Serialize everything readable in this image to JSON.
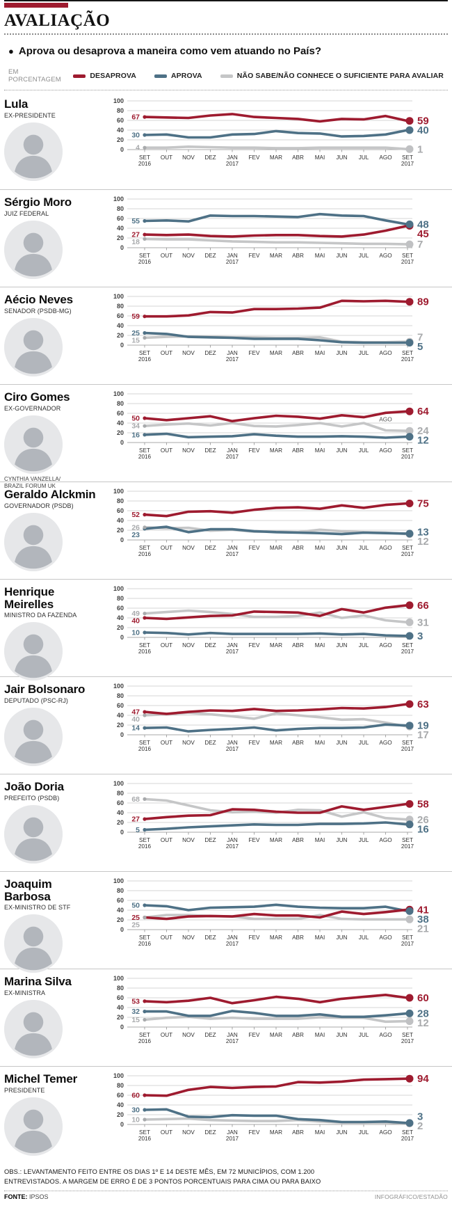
{
  "header": {
    "title": "AVALIAÇÃO",
    "kicker_bar_color": "#9E1B2F"
  },
  "question": {
    "bullet": "●",
    "text": "Aprova ou desaprova a maneira como vem atuando no País?"
  },
  "legend": {
    "unit_label": "EM PORCENTAGEM",
    "items": [
      {
        "key": "desaprova",
        "label": "DESAPROVA",
        "color": "#9E1B2F"
      },
      {
        "key": "aprova",
        "label": "APROVA",
        "color": "#4E7186"
      },
      {
        "key": "nao_sabe",
        "label": "NÃO SABE/NÃO CONHECE O SUFICIENTE PARA AVALIAR",
        "color": "#C5C6C7"
      }
    ]
  },
  "axis": {
    "ylim": [
      0,
      100
    ],
    "y_ticks": [
      0,
      20,
      40,
      60,
      80,
      100
    ],
    "months": [
      {
        "label": "SET",
        "year": "2016"
      },
      {
        "label": "OUT"
      },
      {
        "label": "NOV"
      },
      {
        "label": "DEZ"
      },
      {
        "label": "JAN",
        "year": "2017"
      },
      {
        "label": "FEV"
      },
      {
        "label": "MAR"
      },
      {
        "label": "ABR"
      },
      {
        "label": "MAI"
      },
      {
        "label": "JUN"
      },
      {
        "label": "JUL"
      },
      {
        "label": "AGO"
      },
      {
        "label": "SET",
        "year": "2017"
      }
    ]
  },
  "chart_data": [
    {
      "type": "line",
      "title": "Lula",
      "subtitle": "EX-PRESIDENTE",
      "series": [
        {
          "key": "desaprova",
          "name": "DESAPROVA",
          "color": "#9E1B2F",
          "start_label": "67",
          "end_label": "59",
          "values": [
            67,
            66,
            65,
            70,
            73,
            67,
            65,
            63,
            58,
            63,
            62,
            69,
            59
          ]
        },
        {
          "key": "aprova",
          "name": "APROVA",
          "color": "#4E7186",
          "start_label": "30",
          "end_label": "40",
          "values": [
            30,
            31,
            25,
            25,
            31,
            32,
            38,
            34,
            33,
            27,
            28,
            31,
            40
          ]
        },
        {
          "key": "nao_sabe",
          "name": "NÃO SABE",
          "color": "#C5C6C7",
          "label_color": "#A8AAAC",
          "start_label": "4",
          "end_label": "1",
          "values": [
            4,
            4,
            6,
            5,
            4,
            4,
            3,
            3,
            4,
            4,
            4,
            4,
            1
          ]
        }
      ]
    },
    {
      "type": "line",
      "title": "Sérgio Moro",
      "subtitle": "JUIZ FEDERAL",
      "series": [
        {
          "key": "desaprova",
          "name": "DESAPROVA",
          "color": "#9E1B2F",
          "start_label": "27",
          "end_label": "45",
          "values": [
            27,
            26,
            27,
            24,
            23,
            25,
            26,
            26,
            24,
            23,
            27,
            35,
            45
          ]
        },
        {
          "key": "aprova",
          "name": "APROVA",
          "color": "#4E7186",
          "start_label": "55",
          "end_label": "48",
          "values": [
            55,
            56,
            54,
            66,
            65,
            65,
            64,
            63,
            69,
            66,
            65,
            56,
            48
          ]
        },
        {
          "key": "nao_sabe",
          "name": "NÃO SABE",
          "color": "#C5C6C7",
          "label_color": "#A8AAAC",
          "start_label": "18",
          "end_label": "7",
          "values": [
            18,
            17,
            17,
            15,
            13,
            12,
            11,
            11,
            10,
            9,
            8,
            8,
            7
          ]
        }
      ]
    },
    {
      "type": "line",
      "title": "Aécio Neves",
      "subtitle": "SENADOR (PSDB-MG)",
      "series": [
        {
          "key": "desaprova",
          "name": "DESAPROVA",
          "color": "#9E1B2F",
          "start_label": "59",
          "end_label": "89",
          "values": [
            59,
            59,
            61,
            68,
            67,
            74,
            74,
            75,
            77,
            91,
            90,
            91,
            89
          ]
        },
        {
          "key": "aprova",
          "name": "APROVA",
          "color": "#4E7186",
          "start_label": "25",
          "end_label": "5",
          "values": [
            25,
            23,
            17,
            16,
            15,
            13,
            13,
            13,
            10,
            6,
            5,
            5,
            5
          ]
        },
        {
          "key": "nao_sabe",
          "name": "NÃO SABE",
          "color": "#C5C6C7",
          "label_color": "#A8AAAC",
          "start_label": "15",
          "end_label": "7",
          "values": [
            15,
            17,
            18,
            17,
            16,
            16,
            15,
            15,
            16,
            7,
            6,
            6,
            7
          ]
        }
      ]
    },
    {
      "type": "line",
      "title": "Ciro Gomes",
      "subtitle": "EX-GOVERNADOR",
      "photo_credit": "CYNTHIA VANZELLA/ BRAZIL FORUM UK",
      "annotation": {
        "text": "AGO",
        "month_index": 11,
        "value": 61
      },
      "series": [
        {
          "key": "desaprova",
          "name": "DESAPROVA",
          "color": "#9E1B2F",
          "start_label": "50",
          "end_label": "64",
          "values": [
            50,
            46,
            50,
            54,
            44,
            50,
            55,
            53,
            49,
            56,
            52,
            61,
            64
          ]
        },
        {
          "key": "aprova",
          "name": "APROVA",
          "color": "#4E7186",
          "start_label": "16",
          "end_label": "12",
          "values": [
            16,
            18,
            11,
            12,
            13,
            17,
            14,
            12,
            12,
            13,
            12,
            10,
            12
          ]
        },
        {
          "key": "nao_sabe",
          "name": "NÃO SABE",
          "color": "#C5C6C7",
          "label_color": "#A8AAAC",
          "start_label": "34",
          "end_label": "24",
          "values": [
            34,
            37,
            39,
            35,
            40,
            34,
            33,
            36,
            40,
            33,
            40,
            25,
            24
          ]
        }
      ]
    },
    {
      "type": "line",
      "title": "Geraldo Alckmin",
      "subtitle": "GOVERNADOR (PSDB)",
      "series": [
        {
          "key": "desaprova",
          "name": "DESAPROVA",
          "color": "#9E1B2F",
          "start_label": "52",
          "end_label": "75",
          "values": [
            52,
            49,
            58,
            59,
            56,
            62,
            66,
            67,
            64,
            71,
            66,
            72,
            75
          ]
        },
        {
          "key": "aprova",
          "name": "APROVA",
          "color": "#4E7186",
          "start_label": "23",
          "end_label": "13",
          "values": [
            23,
            27,
            16,
            22,
            22,
            18,
            16,
            15,
            14,
            12,
            15,
            14,
            13
          ]
        },
        {
          "key": "nao_sabe",
          "name": "NÃO SABE",
          "color": "#C5C6C7",
          "label_color": "#A8AAAC",
          "start_label": "26",
          "end_label": "12",
          "values": [
            26,
            24,
            25,
            19,
            21,
            17,
            17,
            16,
            21,
            18,
            16,
            15,
            12
          ]
        }
      ]
    },
    {
      "type": "line",
      "title": "Henrique Meirelles",
      "subtitle": "MINISTRO DA FAZENDA",
      "series": [
        {
          "key": "desaprova",
          "name": "DESAPROVA",
          "color": "#9E1B2F",
          "start_label": "40",
          "end_label": "66",
          "values": [
            40,
            38,
            41,
            44,
            45,
            53,
            52,
            51,
            44,
            58,
            51,
            61,
            66
          ]
        },
        {
          "key": "aprova",
          "name": "APROVA",
          "color": "#4E7186",
          "start_label": "10",
          "end_label": "3",
          "values": [
            10,
            9,
            6,
            9,
            7,
            7,
            7,
            7,
            8,
            6,
            7,
            4,
            3
          ]
        },
        {
          "key": "nao_sabe",
          "name": "NÃO SABE",
          "color": "#C5C6C7",
          "label_color": "#A8AAAC",
          "start_label": "49",
          "end_label": "31",
          "values": [
            49,
            52,
            55,
            52,
            48,
            42,
            42,
            44,
            51,
            40,
            45,
            35,
            31
          ]
        }
      ]
    },
    {
      "type": "line",
      "title": "Jair Bolsonaro",
      "subtitle": "DEPUTADO (PSC-RJ)",
      "series": [
        {
          "key": "desaprova",
          "name": "DESAPROVA",
          "color": "#9E1B2F",
          "start_label": "47",
          "end_label": "63",
          "values": [
            47,
            43,
            47,
            50,
            49,
            53,
            49,
            50,
            52,
            55,
            54,
            57,
            63
          ]
        },
        {
          "key": "aprova",
          "name": "APROVA",
          "color": "#4E7186",
          "start_label": "14",
          "end_label": "19",
          "values": [
            14,
            15,
            7,
            10,
            12,
            15,
            9,
            12,
            14,
            14,
            15,
            21,
            19
          ]
        },
        {
          "key": "nao_sabe",
          "name": "NÃO SABE",
          "color": "#C5C6C7",
          "label_color": "#A8AAAC",
          "start_label": "40",
          "end_label": "17",
          "values": [
            40,
            42,
            45,
            42,
            38,
            33,
            44,
            40,
            36,
            31,
            32,
            25,
            17
          ]
        }
      ]
    },
    {
      "type": "line",
      "title": "João Doria",
      "subtitle": "PREFEITO (PSDB)",
      "series": [
        {
          "key": "desaprova",
          "name": "DESAPROVA",
          "color": "#9E1B2F",
          "start_label": "27",
          "end_label": "58",
          "values": [
            27,
            31,
            34,
            35,
            47,
            46,
            42,
            40,
            40,
            53,
            46,
            52,
            58
          ]
        },
        {
          "key": "aprova",
          "name": "APROVA",
          "color": "#4E7186",
          "start_label": "5",
          "end_label": "16",
          "values": [
            5,
            7,
            10,
            12,
            14,
            16,
            15,
            15,
            17,
            17,
            18,
            20,
            16
          ]
        },
        {
          "key": "nao_sabe",
          "name": "NÃO SABE",
          "color": "#C5C6C7",
          "label_color": "#A8AAAC",
          "start_label": "68",
          "end_label": "26",
          "values": [
            68,
            65,
            55,
            45,
            41,
            42,
            40,
            46,
            45,
            32,
            41,
            29,
            26
          ]
        }
      ]
    },
    {
      "type": "line",
      "title": "Joaquim Barbosa",
      "subtitle": "EX-MINISTRO DE STF",
      "series": [
        {
          "key": "desaprova",
          "name": "DESAPROVA",
          "color": "#9E1B2F",
          "start_label": "25",
          "end_label": "41",
          "values": [
            25,
            22,
            27,
            28,
            27,
            32,
            29,
            29,
            25,
            37,
            32,
            36,
            41
          ]
        },
        {
          "key": "aprova",
          "name": "APROVA",
          "color": "#4E7186",
          "start_label": "50",
          "end_label": "38",
          "values": [
            50,
            48,
            40,
            45,
            46,
            47,
            51,
            47,
            45,
            44,
            44,
            47,
            38
          ]
        },
        {
          "key": "nao_sabe",
          "name": "NÃO SABE",
          "color": "#C5C6C7",
          "label_color": "#A8AAAC",
          "start_label": "25",
          "end_label": "21",
          "values": [
            25,
            30,
            30,
            28,
            27,
            22,
            22,
            22,
            30,
            22,
            21,
            21,
            21
          ]
        }
      ]
    },
    {
      "type": "line",
      "title": "Marina Silva",
      "subtitle": "EX-MINISTRA",
      "series": [
        {
          "key": "desaprova",
          "name": "DESAPROVA",
          "color": "#9E1B2F",
          "start_label": "53",
          "end_label": "60",
          "values": [
            53,
            51,
            54,
            60,
            49,
            55,
            62,
            58,
            51,
            58,
            62,
            66,
            60
          ]
        },
        {
          "key": "aprova",
          "name": "APROVA",
          "color": "#4E7186",
          "start_label": "32",
          "end_label": "28",
          "values": [
            32,
            32,
            23,
            23,
            33,
            29,
            23,
            23,
            26,
            21,
            21,
            24,
            28
          ]
        },
        {
          "key": "nao_sabe",
          "name": "NÃO SABE",
          "color": "#C5C6C7",
          "label_color": "#A8AAAC",
          "start_label": "15",
          "end_label": "12",
          "values": [
            15,
            19,
            21,
            17,
            19,
            17,
            17,
            17,
            20,
            19,
            19,
            11,
            12
          ]
        }
      ]
    },
    {
      "type": "line",
      "title": "Michel Temer",
      "subtitle": "PRESIDENTE",
      "series": [
        {
          "key": "desaprova",
          "name": "DESAPROVA",
          "color": "#9E1B2F",
          "start_label": "60",
          "end_label": "94",
          "values": [
            60,
            59,
            71,
            77,
            75,
            77,
            78,
            87,
            86,
            88,
            92,
            93,
            94
          ]
        },
        {
          "key": "aprova",
          "name": "APROVA",
          "color": "#4E7186",
          "start_label": "30",
          "end_label": "3",
          "values": [
            30,
            31,
            16,
            15,
            19,
            18,
            18,
            11,
            9,
            5,
            5,
            6,
            3
          ]
        },
        {
          "key": "nao_sabe",
          "name": "NÃO SABE",
          "color": "#C5C6C7",
          "label_color": "#A8AAAC",
          "start_label": "10",
          "end_label": "2",
          "values": [
            10,
            11,
            12,
            9,
            8,
            7,
            7,
            9,
            6,
            4,
            4,
            4,
            2
          ]
        }
      ]
    }
  ],
  "footer": {
    "obs_line1": "OBS.: LEVANTAMENTO FEITO ENTRE OS DIAS 1º E 14 DESTE MÊS, EM 72 MUNICÍPIOS, COM 1.200",
    "obs_line2": "ENTREVISTADOS. A MARGEM DE ERRO É DE 3 PONTOS PORCENTUAIS PARA CIMA OU PARA BAIXO",
    "fonte_label": "FONTE:",
    "fonte_value": "IPSOS",
    "credit": "INFOGRÁFICO/ESTADÃO"
  }
}
